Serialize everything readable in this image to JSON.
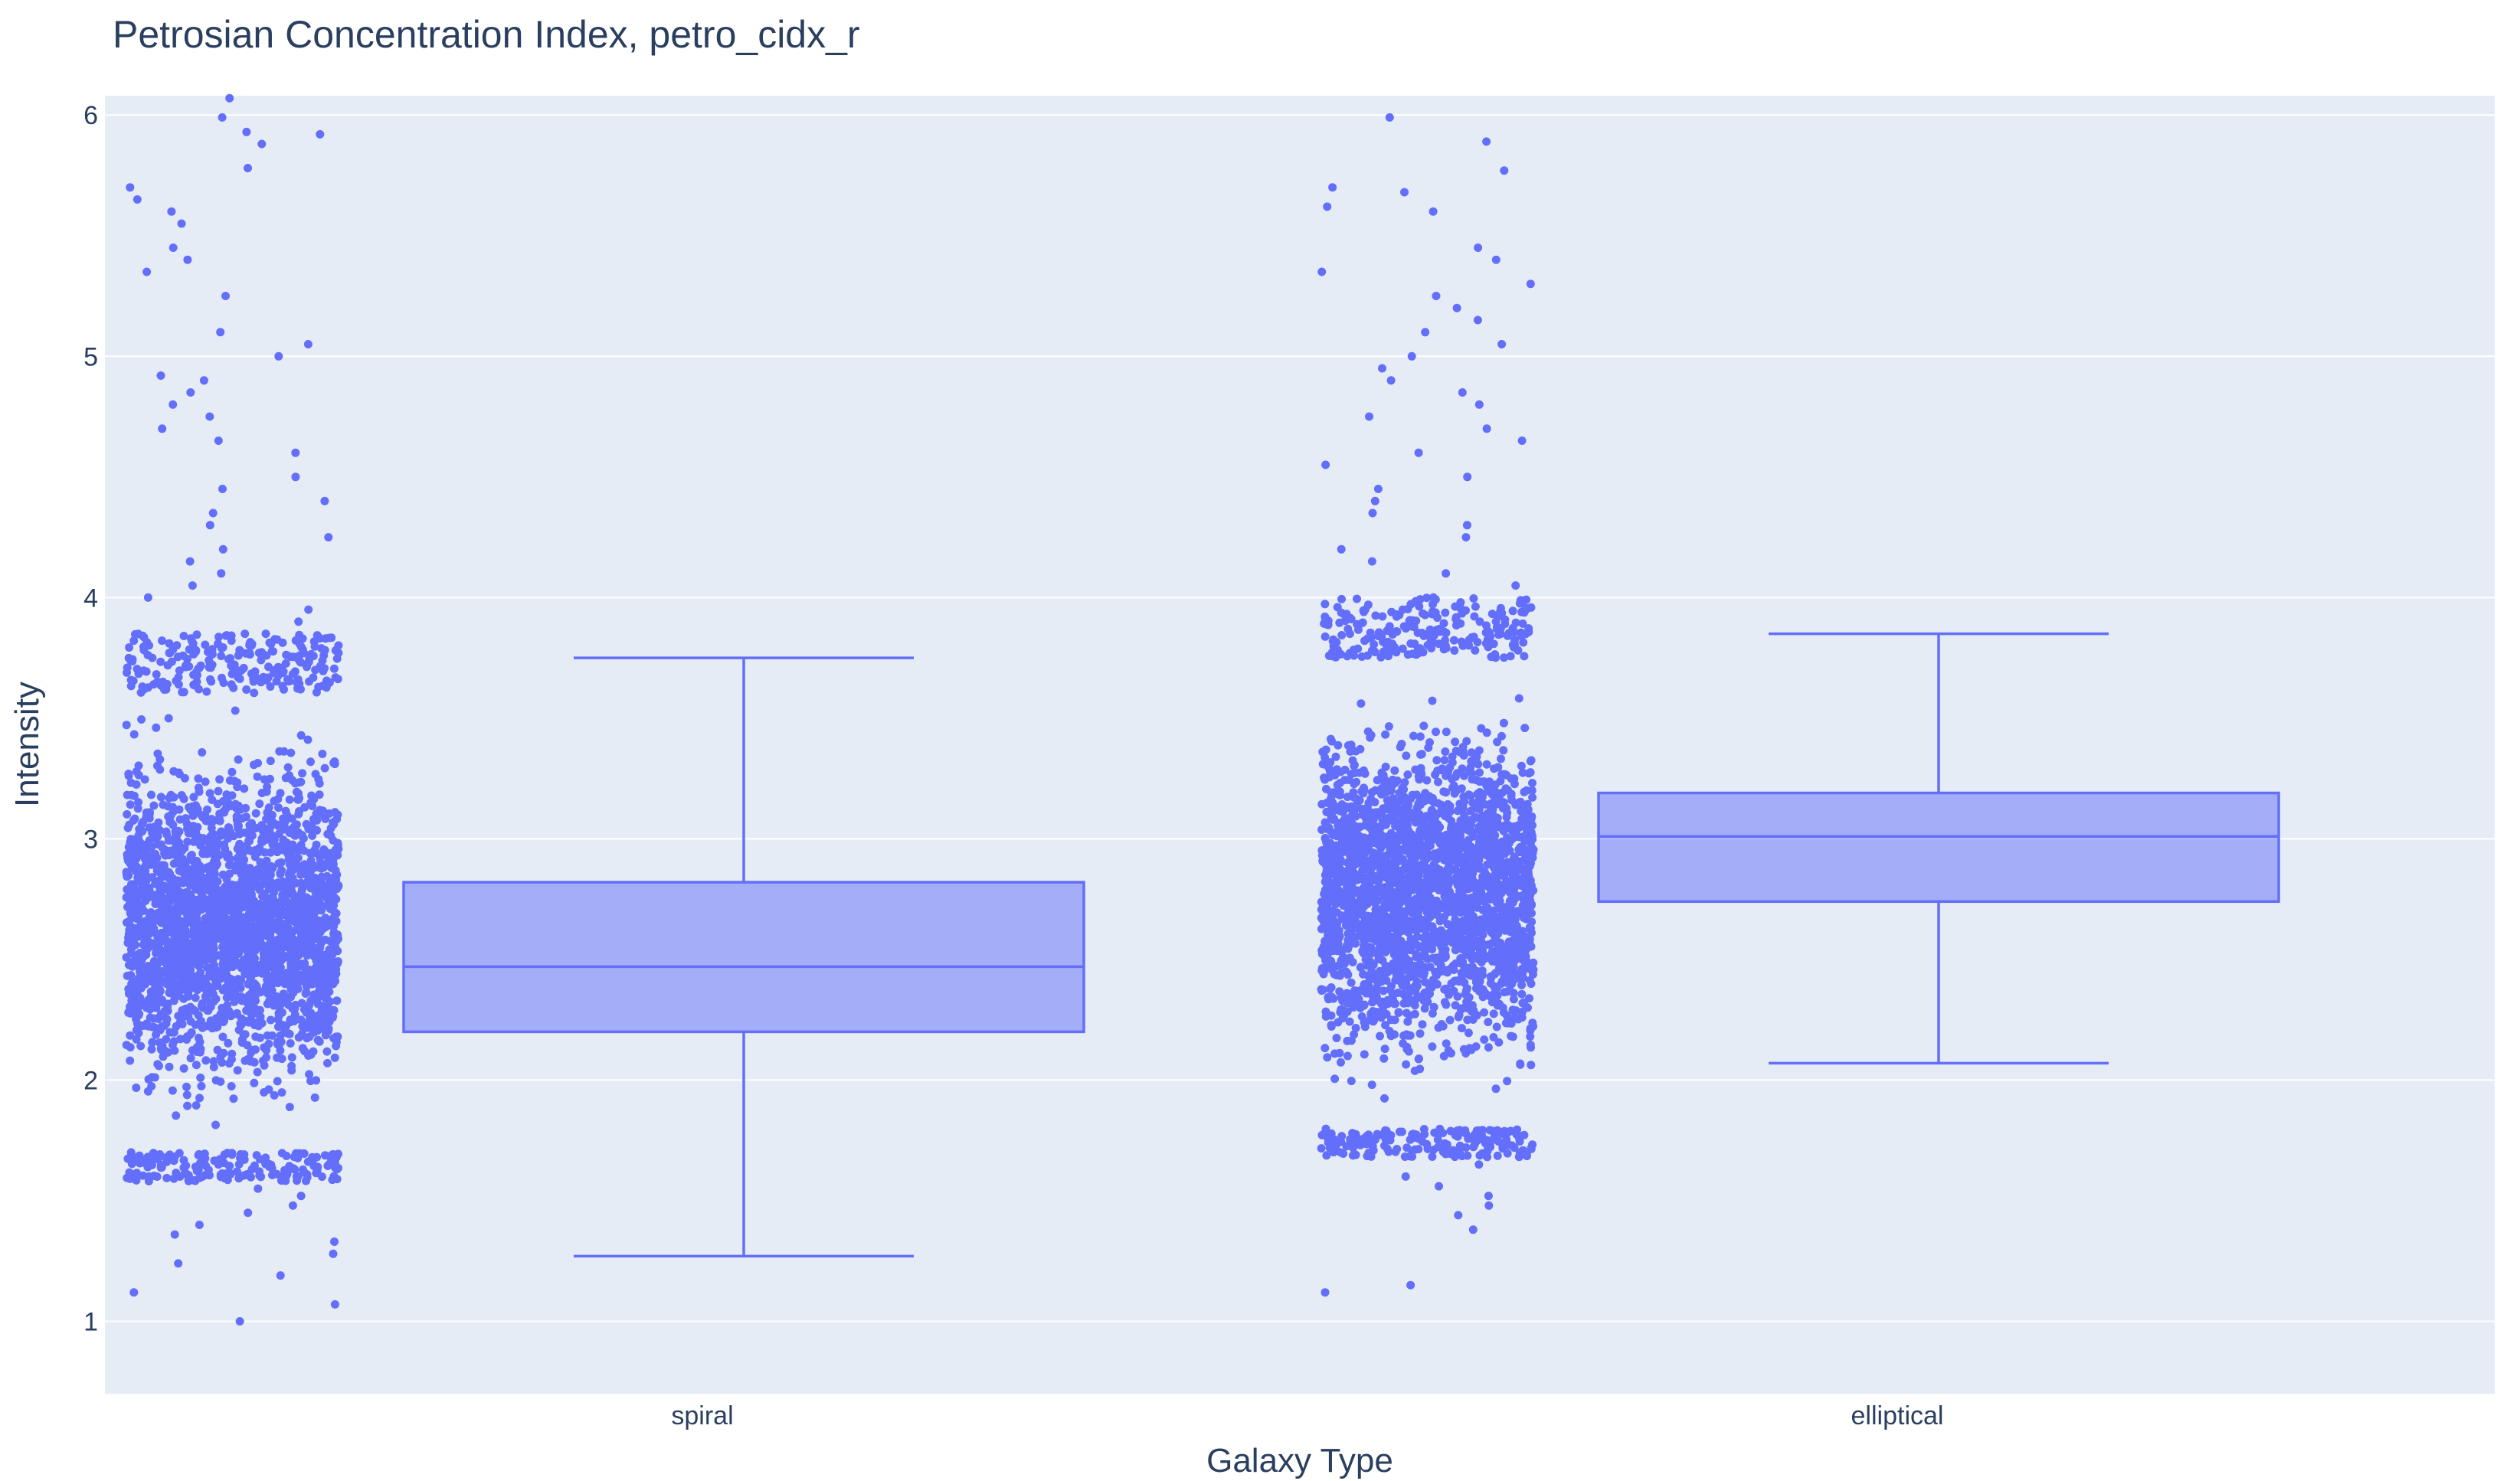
{
  "chart_data": {
    "type": "box",
    "title": "Petrosian Concentration Index, petro_cidx_r",
    "xlabel": "Galaxy Type",
    "ylabel": "Intensity",
    "categories": [
      "spiral",
      "elliptical"
    ],
    "ylim": [
      0.7,
      6.08
    ],
    "yticks": [
      1,
      2,
      3,
      4,
      5,
      6
    ],
    "grid": true,
    "legend": "none",
    "boxpoints": "all",
    "series": [
      {
        "category": "spiral",
        "lowerfence": 1.27,
        "q1": 2.2,
        "median": 2.47,
        "q3": 2.82,
        "upperfence": 3.75,
        "points_dense_range": [
          1.7,
          3.6
        ],
        "outliers_high": [
          3.8,
          3.85,
          3.9,
          3.95,
          4.0,
          4.05,
          4.1,
          4.15,
          4.2,
          4.25,
          4.3,
          4.35,
          4.4,
          4.45,
          4.5,
          4.6,
          4.65,
          4.7,
          4.75,
          4.8,
          4.85,
          4.9,
          4.92,
          5.0,
          5.05,
          5.1,
          5.25,
          5.35,
          5.4,
          5.45,
          5.55,
          5.6,
          5.65,
          5.7,
          5.78,
          5.88,
          5.92,
          5.93,
          5.99,
          6.07
        ],
        "outliers_low": [
          1.65,
          1.6,
          1.55,
          1.52,
          1.48,
          1.45,
          1.4,
          1.36,
          1.33,
          1.28,
          1.24,
          1.19,
          1.12,
          1.07,
          1.0
        ]
      },
      {
        "category": "elliptical",
        "lowerfence": 2.07,
        "q1": 2.74,
        "median": 3.01,
        "q3": 3.19,
        "upperfence": 3.85,
        "points_dense_range": [
          1.8,
          3.75
        ],
        "outliers_high": [
          3.8,
          3.85,
          3.9,
          3.95,
          4.0,
          4.05,
          4.1,
          4.15,
          4.2,
          4.25,
          4.3,
          4.35,
          4.4,
          4.45,
          4.5,
          4.55,
          4.6,
          4.65,
          4.7,
          4.75,
          4.8,
          4.85,
          4.9,
          4.95,
          5.0,
          5.05,
          5.1,
          5.15,
          5.2,
          5.25,
          5.3,
          5.35,
          5.4,
          5.45,
          5.6,
          5.62,
          5.68,
          5.7,
          5.77,
          5.89,
          5.99
        ],
        "outliers_low": [
          1.7,
          1.65,
          1.6,
          1.56,
          1.52,
          1.48,
          1.44,
          1.38,
          1.15,
          1.12
        ]
      }
    ]
  },
  "colors": {
    "paper": "#ffffff",
    "plot_bg": "#e5ecf6",
    "grid": "#ffffff",
    "marker": "#636efa",
    "box_fill": "rgba(99,110,250,0.5)",
    "text": "#2a3f5f"
  }
}
